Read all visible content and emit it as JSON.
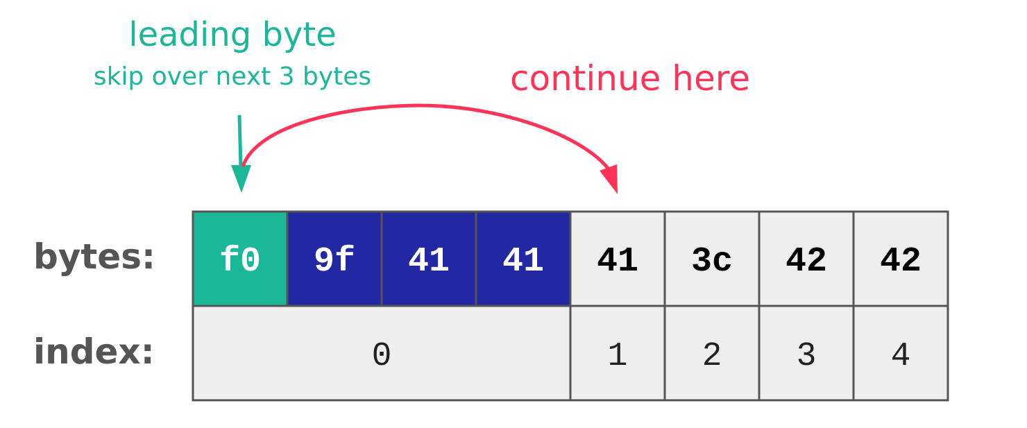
{
  "annotations": {
    "leading_title": "leading byte",
    "leading_subtitle": "skip over next 3 bytes",
    "continue": "continue here"
  },
  "row_labels": {
    "bytes": "bytes:",
    "index": "index:"
  },
  "bytes": [
    {
      "value": "f0",
      "kind": "leading"
    },
    {
      "value": "9f",
      "kind": "continuation"
    },
    {
      "value": "41",
      "kind": "continuation"
    },
    {
      "value": "41",
      "kind": "continuation"
    },
    {
      "value": "41",
      "kind": "plain"
    },
    {
      "value": "3c",
      "kind": "plain"
    },
    {
      "value": "42",
      "kind": "plain"
    },
    {
      "value": "42",
      "kind": "plain"
    }
  ],
  "indices": [
    {
      "value": "0",
      "span": 4
    },
    {
      "value": "1",
      "span": 1
    },
    {
      "value": "2",
      "span": 1
    },
    {
      "value": "3",
      "span": 1
    },
    {
      "value": "4",
      "span": 1
    }
  ],
  "colors": {
    "leading": "#1ab798",
    "continuation": "#2228a3",
    "plain": "#eeeeee",
    "border": "#555555",
    "accent_teal": "#1ab798",
    "accent_pink": "#ff3358"
  }
}
